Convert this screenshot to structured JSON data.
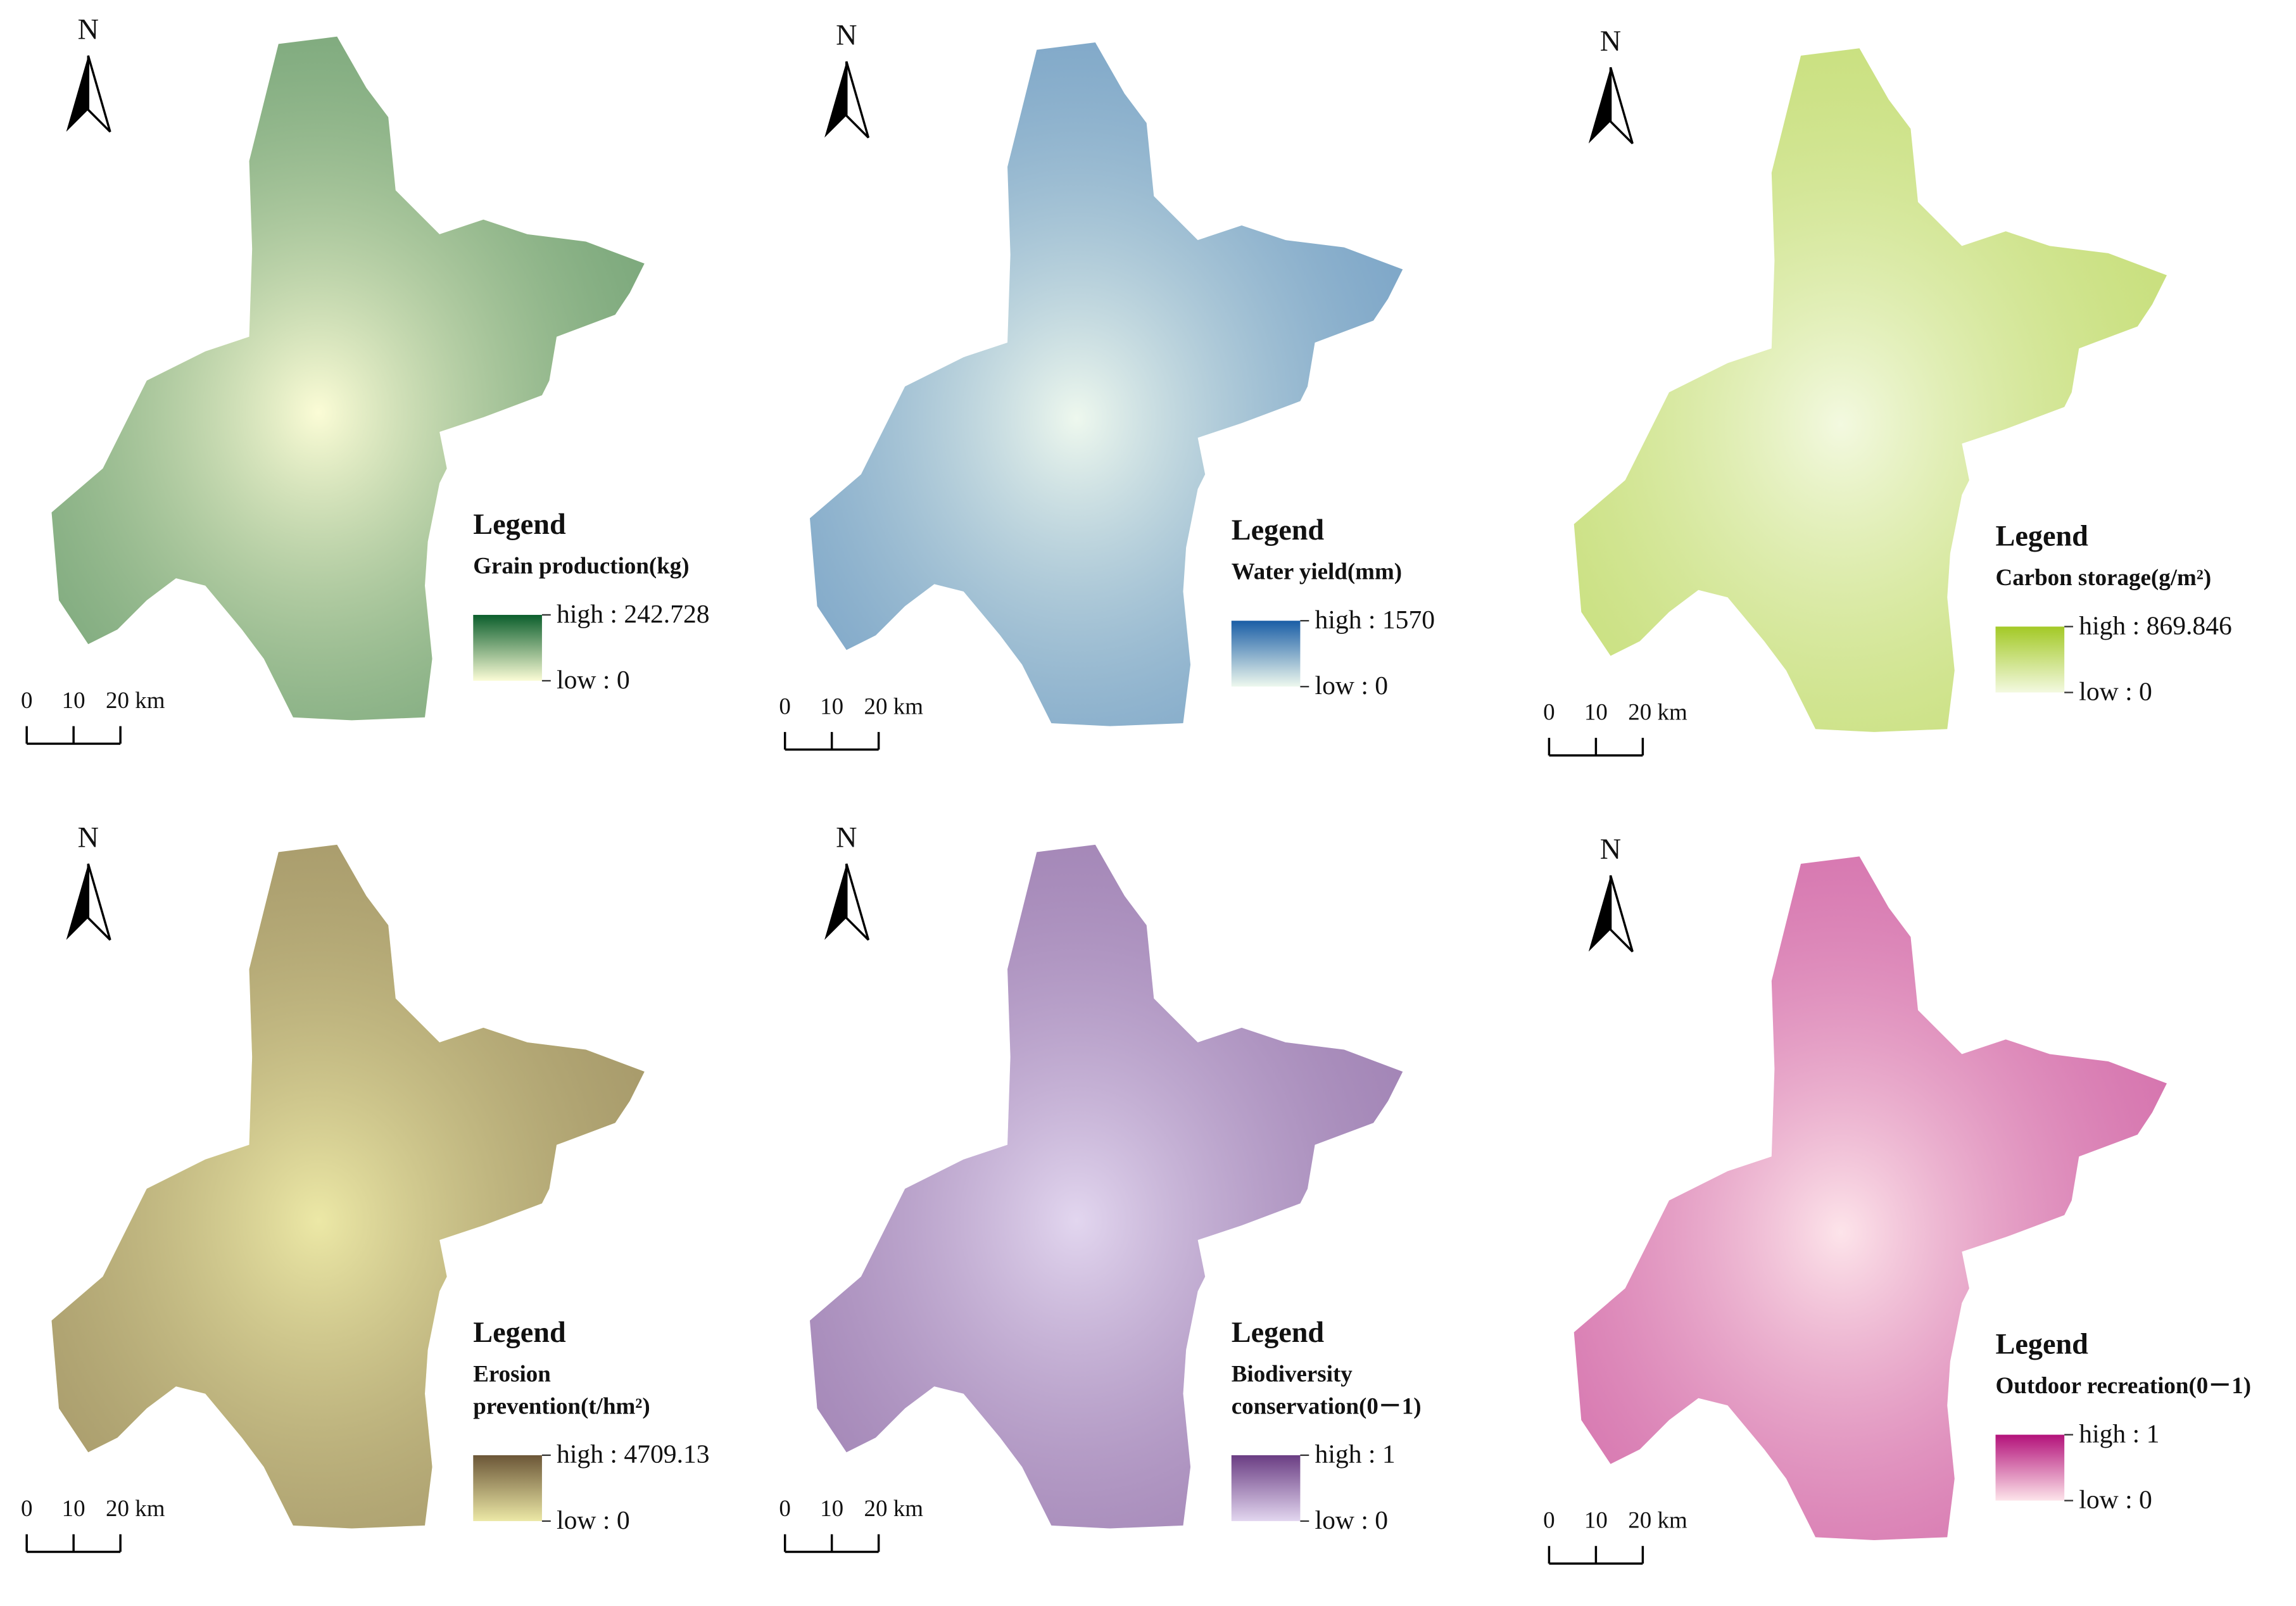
{
  "panels": [
    {
      "north": "N",
      "legend_heading": "Legend",
      "title_lines": [
        "Grain production(kg)"
      ],
      "high": "high : 242.728",
      "low": "low : 0",
      "scale_labels": [
        "0",
        "10",
        "20 km"
      ],
      "high_color": "#0b5e2c",
      "low_color": "#fbfcd6"
    },
    {
      "north": "N",
      "legend_heading": "Legend",
      "title_lines": [
        "Water yield(mm)"
      ],
      "high": "high : 1570",
      "low": "low : 0",
      "scale_labels": [
        "0",
        "10",
        "20 km"
      ],
      "high_color": "#1a5ea6",
      "low_color": "#eef8ee"
    },
    {
      "north": "N",
      "legend_heading": "Legend",
      "title_lines": [
        "Carbon storage(g/m²)"
      ],
      "high": "high : 869.846",
      "low": "low : 0",
      "scale_labels": [
        "0",
        "10",
        "20 km"
      ],
      "high_color": "#a3c926",
      "low_color": "#f3f9e0"
    },
    {
      "north": "N",
      "legend_heading": "Legend",
      "title_lines": [
        "Erosion",
        "prevention(t/hm²)"
      ],
      "high": "high : 4709.13",
      "low": "low : 0",
      "scale_labels": [
        "0",
        "10",
        "20 km"
      ],
      "high_color": "#6b5637",
      "low_color": "#ece8a6"
    },
    {
      "north": "N",
      "legend_heading": "Legend",
      "title_lines": [
        "Biodiversity",
        "conservation(0－1)"
      ],
      "high": "high : 1",
      "low": "low : 0",
      "scale_labels": [
        "0",
        "10",
        "20 km"
      ],
      "high_color": "#6a3d83",
      "low_color": "#e2d6ef"
    },
    {
      "north": "N",
      "legend_heading": "Legend",
      "title_lines": [
        "Outdoor recreation(0－1)"
      ],
      "high": "high : 1",
      "low": "low : 0",
      "scale_labels": [
        "0",
        "10",
        "20 km"
      ],
      "high_color": "#b3127a",
      "low_color": "#fde4ea"
    }
  ]
}
